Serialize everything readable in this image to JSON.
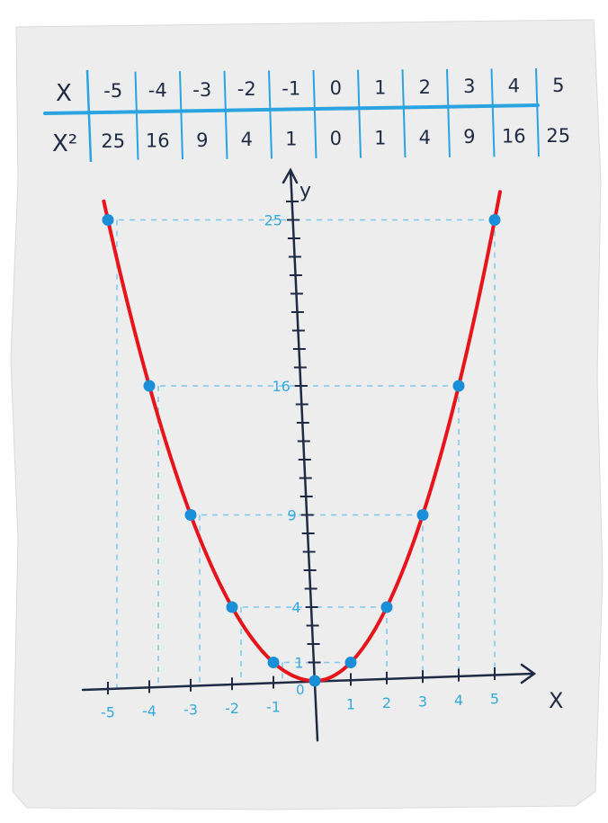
{
  "table": {
    "row1_label": "X",
    "row2_label": "X²",
    "x_values": [
      "-5",
      "-4",
      "-3",
      "-2",
      "-1",
      "0",
      "1",
      "2",
      "3",
      "4",
      "5"
    ],
    "x_squared_values": [
      "25",
      "16",
      "9",
      "4",
      "1",
      "0",
      "1",
      "4",
      "9",
      "16",
      "25"
    ]
  },
  "chart_data": {
    "type": "line",
    "function": "y = x²",
    "xlabel": "X",
    "ylabel": "y",
    "xlim": [
      -5.5,
      5.6
    ],
    "ylim": [
      -2.5,
      28
    ],
    "x_ticks": [
      "-5",
      "-4",
      "-3",
      "-2",
      "-1",
      "1",
      "2",
      "3",
      "4",
      "5"
    ],
    "y_ticks": [
      "1",
      "4",
      "9",
      "16",
      "25"
    ],
    "origin_label": "0",
    "x": [
      -5,
      -4,
      -3,
      -2,
      -1,
      0,
      1,
      2,
      3,
      4,
      5
    ],
    "y": [
      25,
      16,
      9,
      4,
      1,
      0,
      1,
      4,
      9,
      16,
      25
    ],
    "colors": {
      "curve": "#e8141b",
      "points": "#1a8fd8",
      "guides": "#7cc8ee",
      "axes": "#1f2a44",
      "table_rule": "#2aa3e0"
    }
  }
}
